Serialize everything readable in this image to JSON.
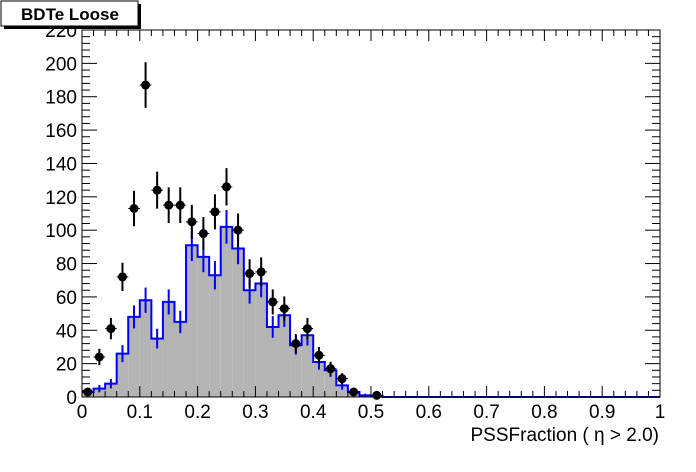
{
  "chart_data": {
    "type": "histogram",
    "title": "BDTe Loose",
    "xlabel": "PSSFraction ( η > 2.0)",
    "ylabel": "",
    "xlim": [
      0,
      1
    ],
    "ylim": [
      0,
      220
    ],
    "x_ticks": [
      "0",
      "0.1",
      "0.2",
      "0.3",
      "0.4",
      "0.5",
      "0.6",
      "0.7",
      "0.8",
      "0.9",
      "1"
    ],
    "y_ticks": [
      "0",
      "20",
      "40",
      "60",
      "80",
      "100",
      "120",
      "140",
      "160",
      "180",
      "200",
      "220"
    ],
    "bin_width": 0.02,
    "grid": false,
    "colors": {
      "histogram_fill": "#b4b4b4",
      "histogram_line": "#0000ff",
      "data_points": "#000000"
    },
    "series": [
      {
        "kind": "histogram",
        "bin_centers": [
          0.01,
          0.03,
          0.05,
          0.07,
          0.09,
          0.11,
          0.13,
          0.15,
          0.17,
          0.19,
          0.21,
          0.23,
          0.25,
          0.27,
          0.29,
          0.31,
          0.33,
          0.35,
          0.37,
          0.39,
          0.41,
          0.43,
          0.45,
          0.47,
          0.49,
          0.51,
          0.53,
          0.55,
          0.57,
          0.59,
          0.61,
          0.63,
          0.65,
          0.67,
          0.69,
          0.71,
          0.73,
          0.75,
          0.77,
          0.79,
          0.81,
          0.83,
          0.85,
          0.87,
          0.89,
          0.91,
          0.93,
          0.95,
          0.97,
          0.99
        ],
        "values": [
          3,
          5,
          8,
          26,
          48,
          58,
          35,
          57,
          45,
          91,
          84,
          73,
          102,
          89,
          64,
          68,
          42,
          49,
          31,
          37,
          21,
          16,
          7,
          3,
          1,
          0.5,
          0,
          0,
          0,
          0,
          0,
          0,
          0,
          0,
          0,
          0,
          0,
          0,
          0,
          0,
          0,
          0,
          0,
          0,
          0,
          0,
          0,
          0,
          0,
          0
        ],
        "errors": [
          1.7,
          2.2,
          2.8,
          5.1,
          6.9,
          7.6,
          5.9,
          7.5,
          6.7,
          9.5,
          9.2,
          8.5,
          10.1,
          9.4,
          8.0,
          8.2,
          6.5,
          7.0,
          5.6,
          6.1,
          4.6,
          4.0,
          2.6,
          1.7,
          1,
          0.7,
          0,
          0,
          0,
          0,
          0,
          0,
          0,
          0,
          0,
          0,
          0,
          0,
          0,
          0,
          0,
          0,
          0,
          0,
          0,
          0,
          0,
          0,
          0,
          0
        ]
      },
      {
        "kind": "points",
        "x": [
          0.01,
          0.03,
          0.05,
          0.07,
          0.09,
          0.11,
          0.13,
          0.15,
          0.17,
          0.19,
          0.21,
          0.23,
          0.25,
          0.27,
          0.29,
          0.31,
          0.33,
          0.35,
          0.37,
          0.39,
          0.41,
          0.43,
          0.45,
          0.47,
          0.51
        ],
        "y": [
          3,
          24,
          41,
          72,
          113,
          187,
          124,
          115,
          115,
          105,
          98,
          111,
          126,
          100,
          74,
          75,
          57,
          53,
          32,
          41,
          25,
          17,
          11,
          3,
          1
        ],
        "yerr": [
          1.7,
          4.9,
          6.4,
          8.5,
          10.6,
          13.7,
          11.1,
          10.7,
          10.7,
          10.2,
          9.9,
          10.5,
          11.2,
          10.0,
          8.6,
          8.7,
          7.5,
          7.3,
          5.7,
          6.4,
          5.0,
          4.1,
          3.3,
          1.7,
          1.0
        ]
      }
    ]
  }
}
